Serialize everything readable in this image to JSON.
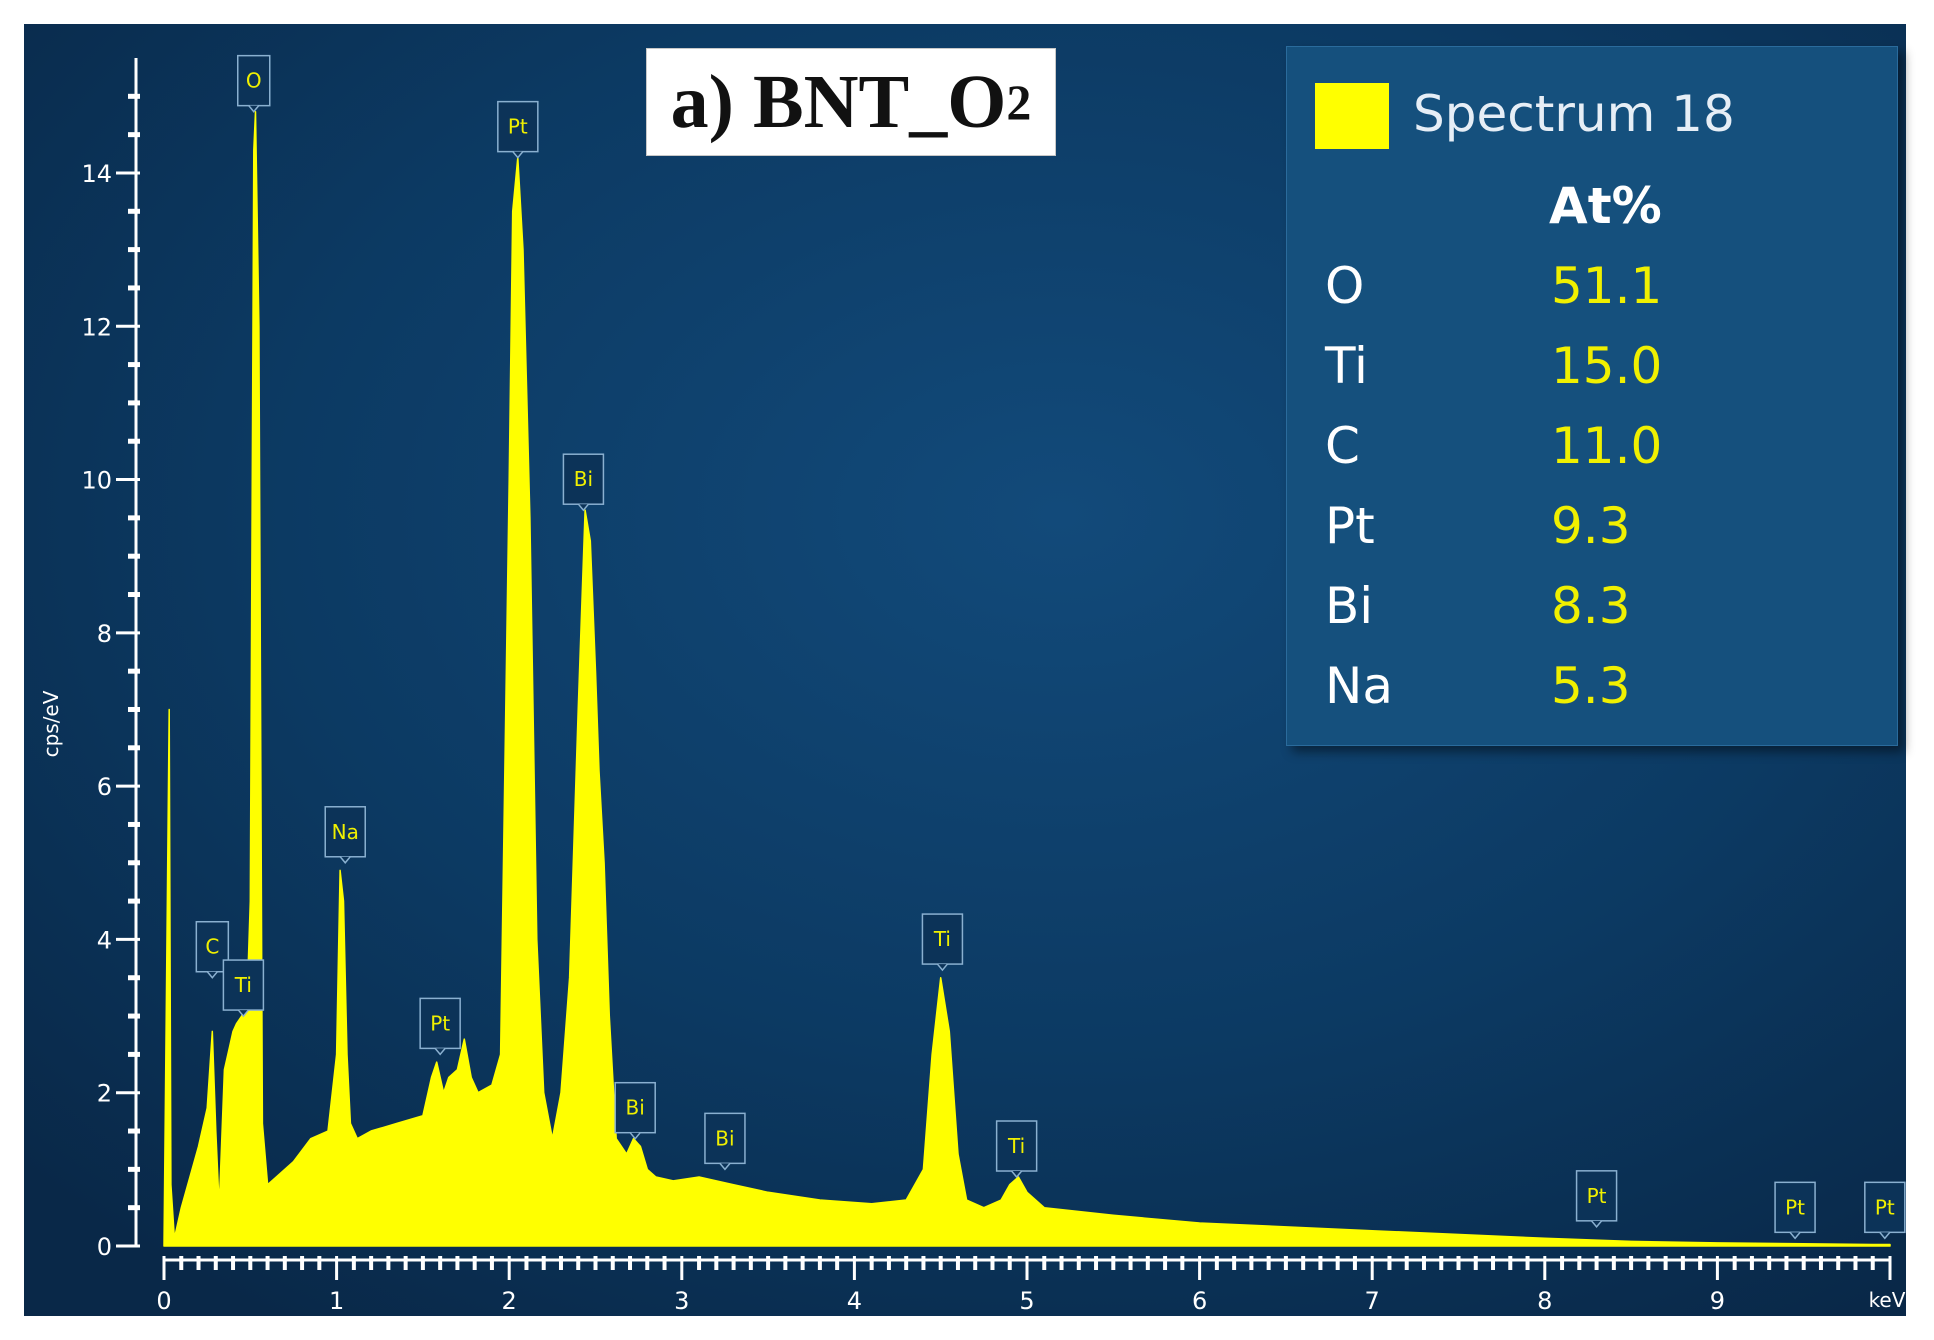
{
  "chart_data": {
    "type": "area",
    "title": "a) BNT_O₂",
    "xlabel": "keV",
    "ylabel": "cps/eV",
    "xlim": [
      0,
      10
    ],
    "ylim": [
      0,
      15.5
    ],
    "x_ticks": [
      "0",
      "1",
      "2",
      "3",
      "4",
      "5",
      "6",
      "7",
      "8",
      "9"
    ],
    "y_ticks": [
      "0",
      "2",
      "4",
      "6",
      "8",
      "10",
      "12",
      "14"
    ],
    "series": [
      {
        "name": "Spectrum 18",
        "x": [
          0,
          0.03,
          0.04,
          0.06,
          0.1,
          0.2,
          0.25,
          0.28,
          0.3,
          0.32,
          0.35,
          0.38,
          0.4,
          0.42,
          0.45,
          0.48,
          0.5,
          0.52,
          0.53,
          0.55,
          0.57,
          0.6,
          0.65,
          0.75,
          0.85,
          0.95,
          1.0,
          1.02,
          1.04,
          1.06,
          1.08,
          1.12,
          1.2,
          1.35,
          1.5,
          1.55,
          1.58,
          1.62,
          1.65,
          1.7,
          1.74,
          1.78,
          1.82,
          1.9,
          1.95,
          2.0,
          2.02,
          2.05,
          2.08,
          2.12,
          2.16,
          2.2,
          2.25,
          2.3,
          2.35,
          2.4,
          2.44,
          2.47,
          2.5,
          2.52,
          2.55,
          2.58,
          2.62,
          2.68,
          2.72,
          2.76,
          2.8,
          2.85,
          2.95,
          3.1,
          3.2,
          3.3,
          3.5,
          3.8,
          4.1,
          4.3,
          4.4,
          4.45,
          4.5,
          4.55,
          4.6,
          4.65,
          4.75,
          4.85,
          4.9,
          4.95,
          5.0,
          5.1,
          5.5,
          6.0,
          7.0,
          8.0,
          8.5,
          9.0,
          9.5,
          9.9,
          10.0
        ],
        "values": [
          0,
          7.0,
          0.8,
          0.1,
          0.5,
          1.3,
          1.8,
          2.8,
          1.5,
          0.5,
          2.3,
          2.6,
          2.8,
          2.9,
          3.0,
          3.1,
          4.5,
          14.3,
          14.8,
          12.0,
          1.6,
          0.8,
          0.9,
          1.1,
          1.4,
          1.5,
          2.5,
          4.9,
          4.5,
          2.5,
          1.6,
          1.4,
          1.5,
          1.6,
          1.7,
          2.2,
          2.4,
          2.0,
          2.2,
          2.3,
          2.7,
          2.2,
          2.0,
          2.1,
          2.5,
          10.0,
          13.5,
          14.2,
          13.0,
          9.5,
          4.0,
          2.0,
          1.4,
          2.0,
          3.5,
          7.0,
          9.6,
          9.2,
          7.5,
          6.2,
          5.0,
          3.0,
          1.4,
          1.2,
          1.4,
          1.3,
          1.0,
          0.9,
          0.85,
          0.9,
          0.85,
          0.8,
          0.7,
          0.6,
          0.55,
          0.6,
          1.0,
          2.5,
          3.5,
          2.8,
          1.2,
          0.6,
          0.5,
          0.6,
          0.8,
          0.9,
          0.7,
          0.5,
          0.4,
          0.3,
          0.2,
          0.1,
          0.06,
          0.04,
          0.03,
          0.02,
          0.02
        ]
      }
    ],
    "peak_labels": [
      {
        "label": "O",
        "x": 0.52,
        "y": 14.8
      },
      {
        "label": "C",
        "x": 0.28,
        "y": 3.5
      },
      {
        "label": "Ti",
        "x": 0.46,
        "y": 3.0
      },
      {
        "label": "Na",
        "x": 1.05,
        "y": 5.0
      },
      {
        "label": "Pt",
        "x": 1.6,
        "y": 2.5
      },
      {
        "label": "Pt",
        "x": 2.05,
        "y": 14.2
      },
      {
        "label": "Bi",
        "x": 2.43,
        "y": 9.6
      },
      {
        "label": "Bi",
        "x": 2.73,
        "y": 1.4
      },
      {
        "label": "Bi",
        "x": 3.25,
        "y": 1.0
      },
      {
        "label": "Ti",
        "x": 4.51,
        "y": 3.6
      },
      {
        "label": "Ti",
        "x": 4.94,
        "y": 0.9
      },
      {
        "label": "Pt",
        "x": 8.3,
        "y": 0.25
      },
      {
        "label": "Pt",
        "x": 9.45,
        "y": 0.1
      },
      {
        "label": "Pt",
        "x": 9.97,
        "y": 0.1
      }
    ],
    "legend_position": "top-right",
    "grid": false
  },
  "sample_label": {
    "prefix": "a) BNT_O",
    "subscript": "2"
  },
  "legend": {
    "series_name": "Spectrum 18",
    "column_header": "At%",
    "rows": [
      {
        "element": "O",
        "value": "51.1"
      },
      {
        "element": "Ti",
        "value": "15.0"
      },
      {
        "element": "C",
        "value": "11.0"
      },
      {
        "element": "Pt",
        "value": "9.3"
      },
      {
        "element": "Bi",
        "value": "8.3"
      },
      {
        "element": "Na",
        "value": "5.3"
      }
    ]
  },
  "colors": {
    "background_top": "#0c3a63",
    "background_bottom": "#0a2a4d",
    "spectrum": "#ffff00",
    "axis": "#ffffff",
    "legend_bg": "#15507d",
    "label_box_bg": "#0c3358",
    "label_box_border": "#8ab0d0"
  }
}
